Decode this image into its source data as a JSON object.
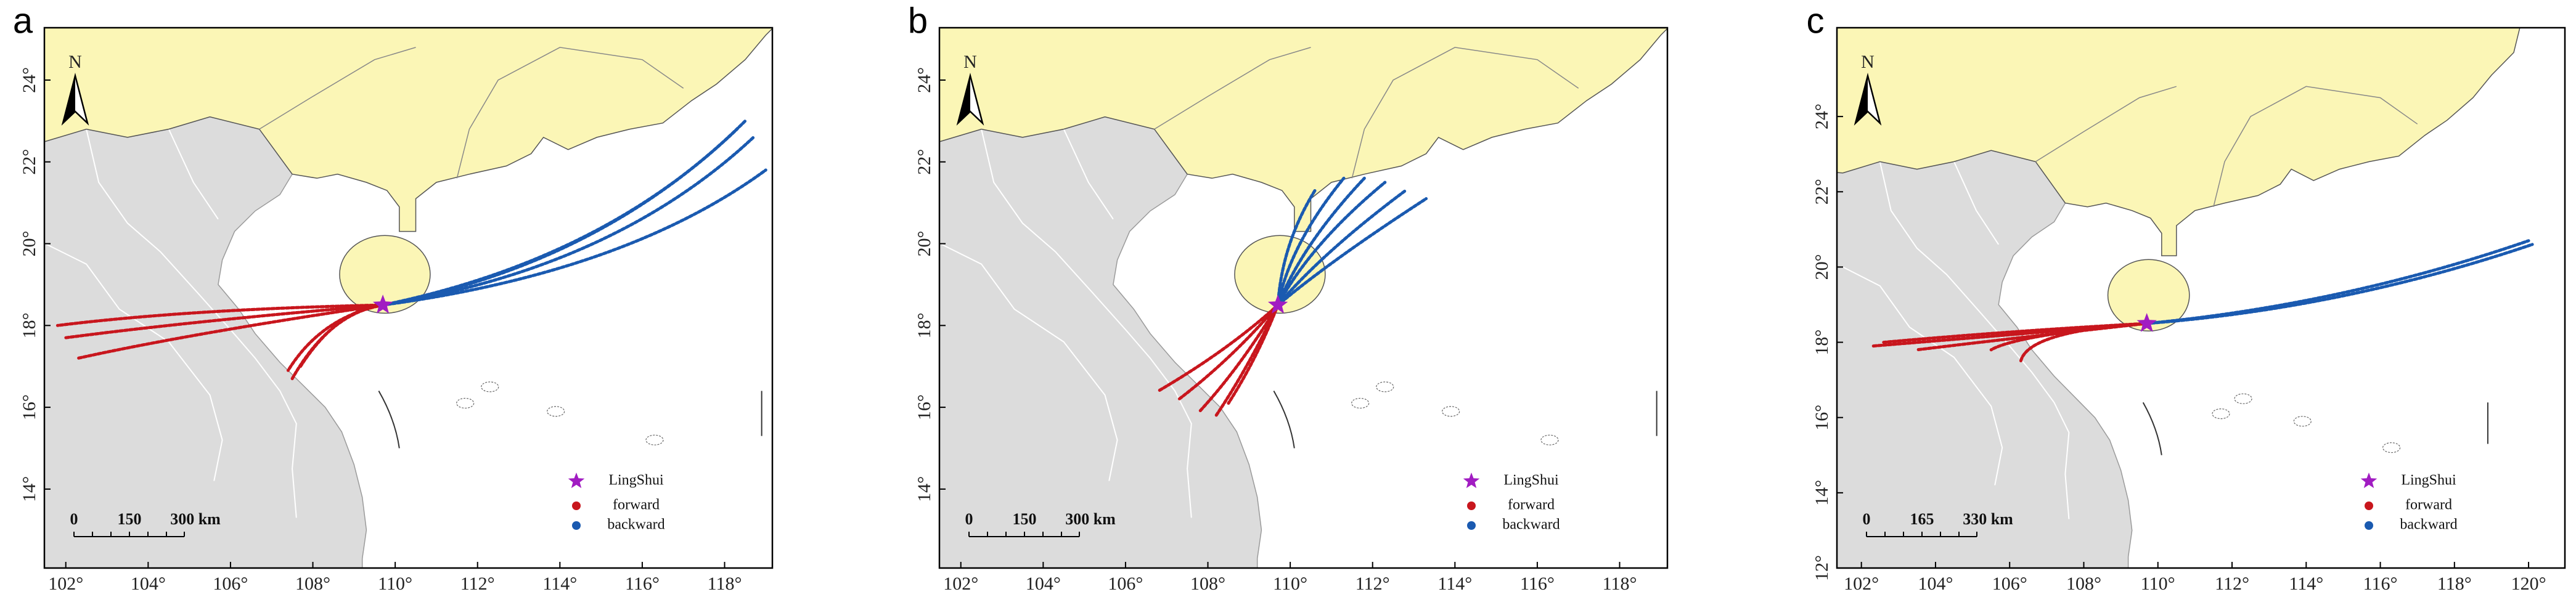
{
  "panels": [
    {
      "label": "a",
      "xticks": [
        {
          "value": 102,
          "label": "102°"
        },
        {
          "value": 104,
          "label": "104°"
        },
        {
          "value": 106,
          "label": "106°"
        },
        {
          "value": 108,
          "label": "108°"
        },
        {
          "value": 110,
          "label": "110°"
        },
        {
          "value": 112,
          "label": "112°"
        },
        {
          "value": 114,
          "label": "114°"
        },
        {
          "value": 116,
          "label": "116°"
        },
        {
          "value": 118,
          "label": "118°"
        }
      ],
      "yticks": [
        {
          "value": 14,
          "label": "14°"
        },
        {
          "value": 16,
          "label": "16°"
        },
        {
          "value": 18,
          "label": "18°"
        },
        {
          "value": 20,
          "label": "20°"
        },
        {
          "value": 22,
          "label": "22°"
        },
        {
          "value": 24,
          "label": "24°"
        }
      ],
      "north": "N",
      "scale_bar": [
        "0",
        "150",
        "300 km"
      ],
      "legend": [
        "LingShui",
        "forward",
        "backward"
      ]
    },
    {
      "label": "b",
      "xticks": [
        {
          "value": 102,
          "label": "102°"
        },
        {
          "value": 104,
          "label": "104°"
        },
        {
          "value": 106,
          "label": "106°"
        },
        {
          "value": 108,
          "label": "108°"
        },
        {
          "value": 110,
          "label": "110°"
        },
        {
          "value": 112,
          "label": "112°"
        },
        {
          "value": 114,
          "label": "114°"
        },
        {
          "value": 116,
          "label": "116°"
        },
        {
          "value": 118,
          "label": "118°"
        }
      ],
      "yticks": [
        {
          "value": 14,
          "label": "14°"
        },
        {
          "value": 16,
          "label": "16°"
        },
        {
          "value": 18,
          "label": "18°"
        },
        {
          "value": 20,
          "label": "20°"
        },
        {
          "value": 22,
          "label": "22°"
        },
        {
          "value": 24,
          "label": "24°"
        }
      ],
      "north": "N",
      "scale_bar": [
        "0",
        "150",
        "300 km"
      ],
      "legend": [
        "LingShui",
        "forward",
        "backward"
      ]
    },
    {
      "label": "c",
      "xticks": [
        {
          "value": 102,
          "label": "102°"
        },
        {
          "value": 104,
          "label": "104°"
        },
        {
          "value": 106,
          "label": "106°"
        },
        {
          "value": 108,
          "label": "108°"
        },
        {
          "value": 110,
          "label": "110°"
        },
        {
          "value": 112,
          "label": "112°"
        },
        {
          "value": 114,
          "label": "114°"
        },
        {
          "value": 116,
          "label": "116°"
        },
        {
          "value": 118,
          "label": "118°"
        },
        {
          "value": 120,
          "label": "120°"
        }
      ],
      "yticks": [
        {
          "value": 12,
          "label": "12°"
        },
        {
          "value": 14,
          "label": "14°"
        },
        {
          "value": 16,
          "label": "16°"
        },
        {
          "value": 18,
          "label": "18°"
        },
        {
          "value": 20,
          "label": "20°"
        },
        {
          "value": 22,
          "label": "22°"
        },
        {
          "value": 24,
          "label": "24°"
        }
      ],
      "north": "N",
      "scale_bar": [
        "0",
        "165",
        "330 km"
      ],
      "legend": [
        "LingShui",
        "forward",
        "backward"
      ]
    }
  ]
}
